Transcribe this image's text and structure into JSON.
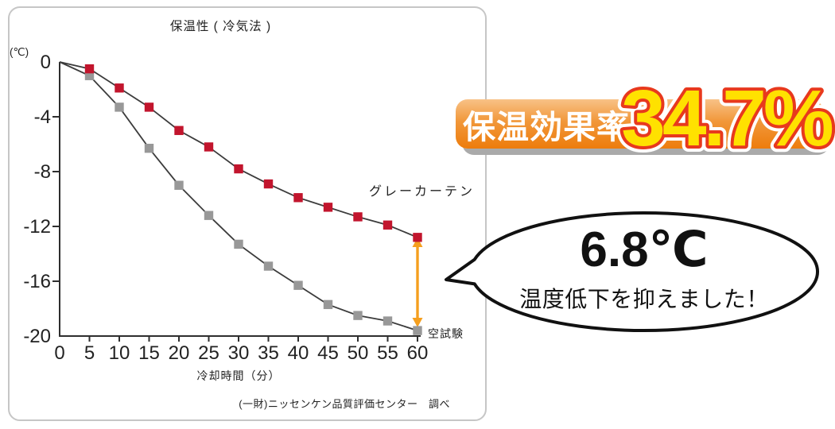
{
  "chart": {
    "title": "保温性 ( 冷気法 )",
    "y_unit": "(℃)",
    "x_label": "冷却時間（分）",
    "source_note": "(一財)ニッセンケン品質評価センター　調べ",
    "series_label_curtain": "グレーカーテン",
    "series_label_blank": "空試験"
  },
  "chart_data": {
    "type": "line",
    "title": "保温性 ( 冷気法 )",
    "xlabel": "冷却時間（分）",
    "ylabel": "(℃)",
    "x": [
      0,
      5,
      10,
      15,
      20,
      25,
      30,
      35,
      40,
      45,
      50,
      55,
      60
    ],
    "x_ticks": [
      0,
      5,
      10,
      15,
      20,
      25,
      30,
      35,
      40,
      45,
      50,
      55,
      60
    ],
    "y_ticks": [
      0,
      -4,
      -8,
      -12,
      -16,
      -20
    ],
    "xlim": [
      0,
      60
    ],
    "ylim": [
      -20,
      0
    ],
    "grid": false,
    "legend_position": "inline-labels",
    "axis_color": "#2e2e2e",
    "line_color": "#3c3c3c",
    "marker_shape": "square",
    "series": [
      {
        "name": "グレーカーテン",
        "color": "#c2152d",
        "values": [
          0,
          -0.5,
          -1.9,
          -3.3,
          -5.0,
          -6.2,
          -7.8,
          -8.9,
          -9.9,
          -10.6,
          -11.3,
          -11.9,
          -12.8
        ]
      },
      {
        "name": "空試験",
        "color": "#989898",
        "values": [
          0,
          -1.0,
          -3.3,
          -6.3,
          -9.0,
          -11.2,
          -13.3,
          -14.9,
          -16.3,
          -17.7,
          -18.5,
          -18.9,
          -19.6
        ]
      }
    ],
    "annotation": {
      "difference_at_60min_c": 6.8,
      "arrow_color": "#f59f1e",
      "effect_rate_percent": 34.7
    }
  },
  "badge": {
    "label": "保温効果率",
    "value": "34.7%",
    "bg_top": "#f8c287",
    "bg_bottom": "#ed7c0c",
    "value_fill": "#ffe100",
    "value_outline": "#e8391d"
  },
  "bubble": {
    "line1": "6.8℃",
    "line2": "温度低下を抑えました！"
  }
}
